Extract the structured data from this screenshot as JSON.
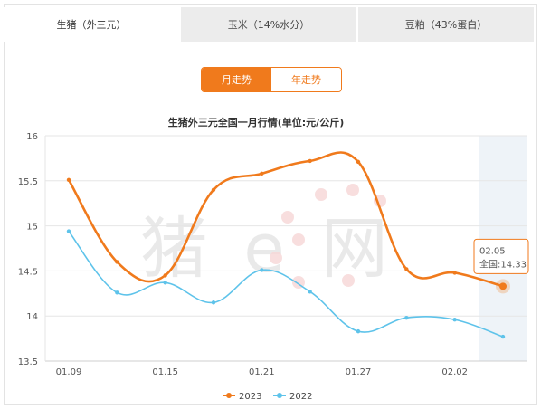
{
  "tabs": [
    {
      "label": "生猪（外三元）",
      "active": true
    },
    {
      "label": "玉米（14%水分）",
      "active": false
    },
    {
      "label": "豆粕（43%蛋白）",
      "active": false
    }
  ],
  "toggle": {
    "monthly": "月走势",
    "yearly": "年走势"
  },
  "chart_data": {
    "type": "line",
    "title": "生猪外三元全国一月行情(单位:元/公斤)",
    "x": [
      "01.09",
      "01.12",
      "01.15",
      "01.18",
      "01.21",
      "01.24",
      "01.27",
      "01.29",
      "02.02",
      "02.05"
    ],
    "x_tick_labels": [
      "01.09",
      "01.15",
      "01.21",
      "01.27",
      "02.02"
    ],
    "ylim": [
      13.5,
      16
    ],
    "y_ticks": [
      "13.5",
      "14",
      "14.5",
      "15",
      "15.5",
      "16"
    ],
    "series": [
      {
        "name": "2023",
        "color": "#f07a1c",
        "values": [
          15.51,
          14.6,
          14.45,
          15.4,
          15.58,
          15.72,
          15.71,
          14.52,
          14.48,
          14.33
        ]
      },
      {
        "name": "2022",
        "color": "#5ec3ea",
        "values": [
          14.94,
          14.26,
          14.37,
          14.15,
          14.51,
          14.27,
          13.83,
          13.98,
          13.96,
          13.77
        ]
      }
    ],
    "tooltip": {
      "date": "02.05",
      "text": "全国:14.33"
    },
    "grid": true,
    "legend_position": "bottom-center"
  },
  "watermark": {
    "text": "猪e网"
  }
}
